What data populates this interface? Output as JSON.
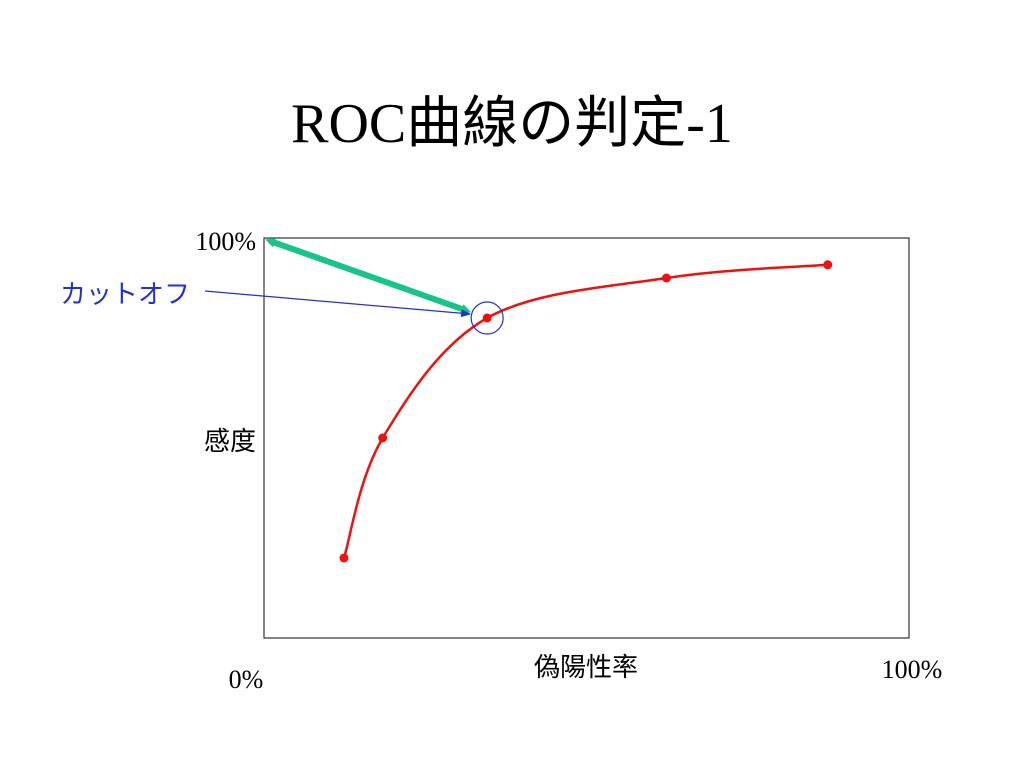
{
  "slide": {
    "title": "ROC曲線の判定-1"
  },
  "chart_data": {
    "type": "line",
    "title": "ROC曲線の判定-1",
    "xlabel": "偽陽性率",
    "ylabel": "感度",
    "x_tick_labels": {
      "min": "0%",
      "max": "100%"
    },
    "y_tick_labels": {
      "max": "100%"
    },
    "xlim": [
      0,
      100
    ],
    "ylim": [
      0,
      100
    ],
    "grid": false,
    "series": [
      {
        "color": "#ee1111",
        "points": [
          {
            "x": 12.4,
            "y": 20.0
          },
          {
            "x": 18.4,
            "y": 50.0
          },
          {
            "x": 34.6,
            "y": 80.0
          },
          {
            "x": 62.4,
            "y": 90.0
          },
          {
            "x": 87.4,
            "y": 93.3
          }
        ]
      }
    ],
    "annotations": {
      "cutoff_label": "カットオフ",
      "cutoff_point_index": 2,
      "cutoff_color": "#2233cc",
      "distance_arrow_color": "#19c48c",
      "distance_arrow_from": {
        "x": 0,
        "y": 100
      }
    }
  }
}
